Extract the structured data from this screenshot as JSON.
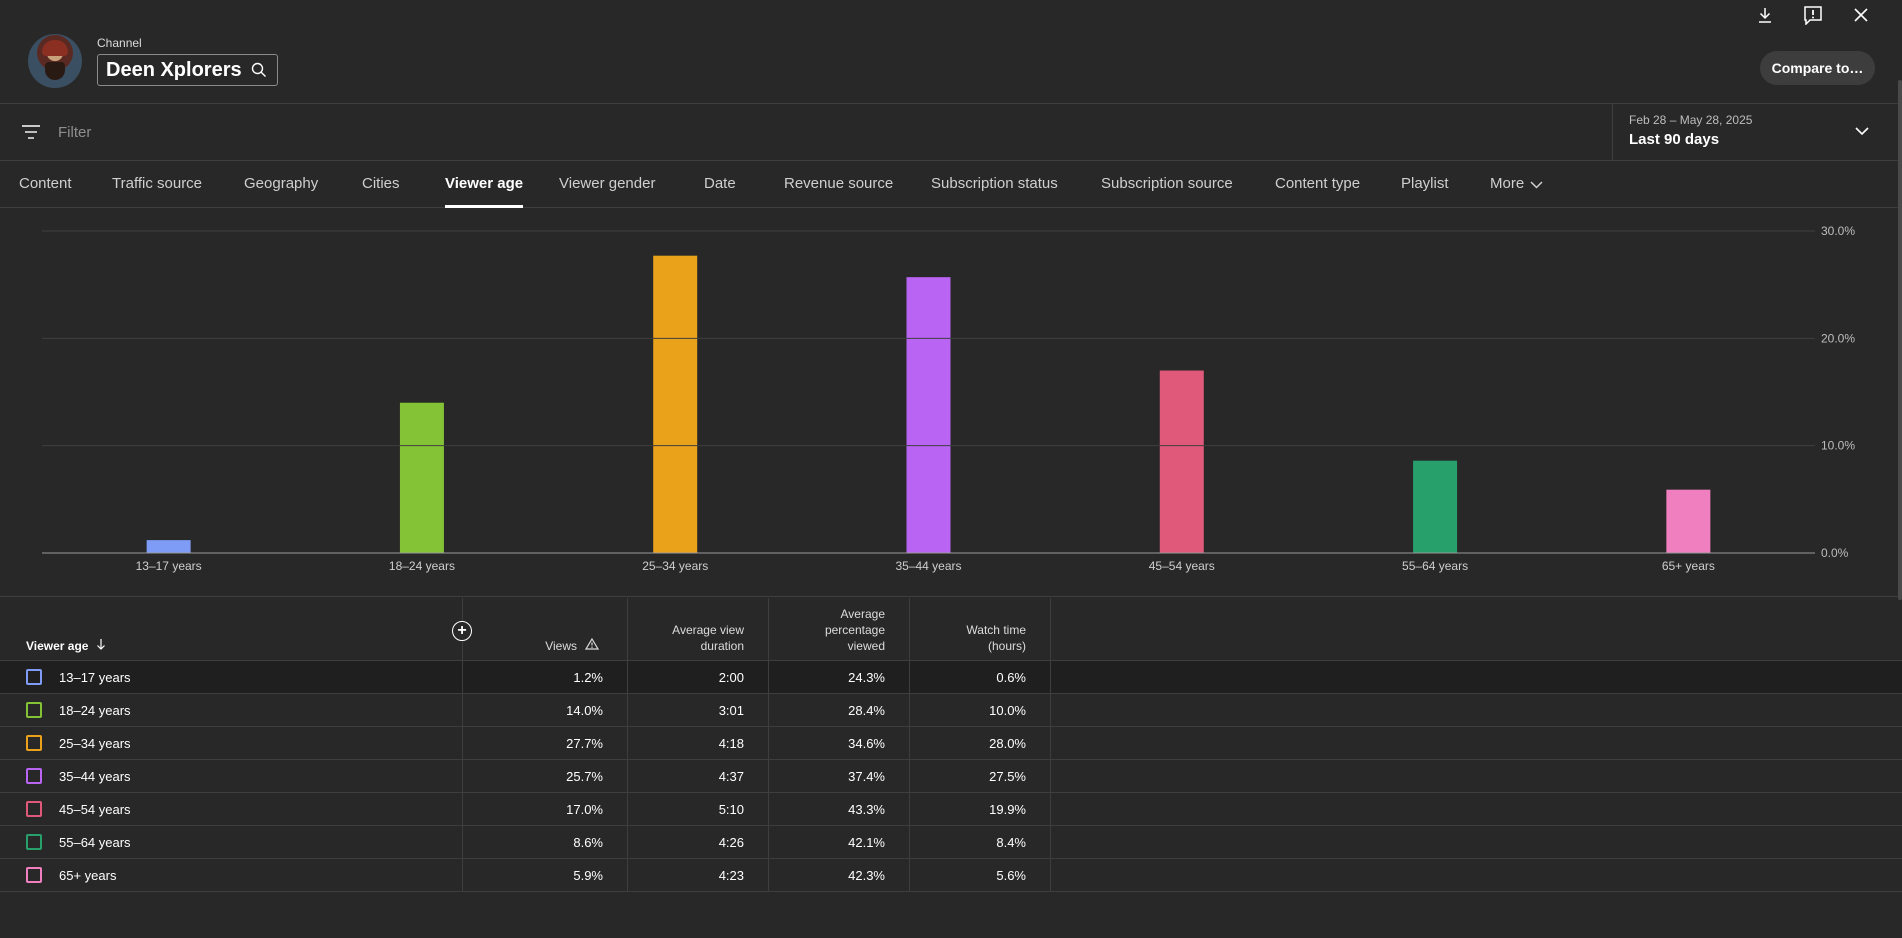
{
  "header": {
    "channel_label": "Channel",
    "channel_name": "Deen Xplorers",
    "compare_label": "Compare to…",
    "icons": [
      "download-icon",
      "feedback-icon",
      "close-icon"
    ]
  },
  "filter": {
    "placeholder": "Filter",
    "date_range": "Feb 28 – May 28, 2025",
    "date_period": "Last 90 days"
  },
  "tabs": [
    {
      "label": "Content"
    },
    {
      "label": "Traffic source"
    },
    {
      "label": "Geography"
    },
    {
      "label": "Cities"
    },
    {
      "label": "Viewer age",
      "active": true
    },
    {
      "label": "Viewer gender"
    },
    {
      "label": "Date"
    },
    {
      "label": "Revenue source"
    },
    {
      "label": "Subscription status"
    },
    {
      "label": "Subscription source"
    },
    {
      "label": "Content type"
    },
    {
      "label": "Playlist"
    },
    {
      "label": "More"
    }
  ],
  "chart_data": {
    "type": "bar",
    "categories": [
      "13–17 years",
      "18–24 years",
      "25–34 years",
      "35–44 years",
      "45–54 years",
      "55–64 years",
      "65+ years"
    ],
    "values": [
      1.2,
      14.0,
      27.7,
      25.7,
      17.0,
      8.6,
      5.9
    ],
    "colors": [
      "#7e9cf5",
      "#84c335",
      "#eba21b",
      "#b964f2",
      "#e0587a",
      "#27a06c",
      "#f07fc0"
    ],
    "ylim": [
      0,
      30
    ],
    "yticks": [
      "0.0%",
      "10.0%",
      "20.0%",
      "30.0%"
    ],
    "grid": true
  },
  "table": {
    "headers": {
      "dimension": "Viewer age",
      "views": "Views",
      "avg_view_duration": "Average view duration",
      "avg_pct_viewed": "Average percentage viewed",
      "watch_time": "Watch time (hours)"
    },
    "rows": [
      {
        "label": "13–17 years",
        "color": "#7e9cf5",
        "views": "1.2%",
        "avd": "2:00",
        "apv": "24.3%",
        "wt": "0.6%"
      },
      {
        "label": "18–24 years",
        "color": "#84c335",
        "views": "14.0%",
        "avd": "3:01",
        "apv": "28.4%",
        "wt": "10.0%"
      },
      {
        "label": "25–34 years",
        "color": "#eba21b",
        "views": "27.7%",
        "avd": "4:18",
        "apv": "34.6%",
        "wt": "28.0%"
      },
      {
        "label": "35–44 years",
        "color": "#b964f2",
        "views": "25.7%",
        "avd": "4:37",
        "apv": "37.4%",
        "wt": "27.5%"
      },
      {
        "label": "45–54 years",
        "color": "#e0587a",
        "views": "17.0%",
        "avd": "5:10",
        "apv": "43.3%",
        "wt": "19.9%"
      },
      {
        "label": "55–64 years",
        "color": "#27a06c",
        "views": "8.6%",
        "avd": "4:26",
        "apv": "42.1%",
        "wt": "8.4%"
      },
      {
        "label": "65+ years",
        "color": "#f07fc0",
        "views": "5.9%",
        "avd": "4:23",
        "apv": "42.3%",
        "wt": "5.6%"
      }
    ]
  }
}
